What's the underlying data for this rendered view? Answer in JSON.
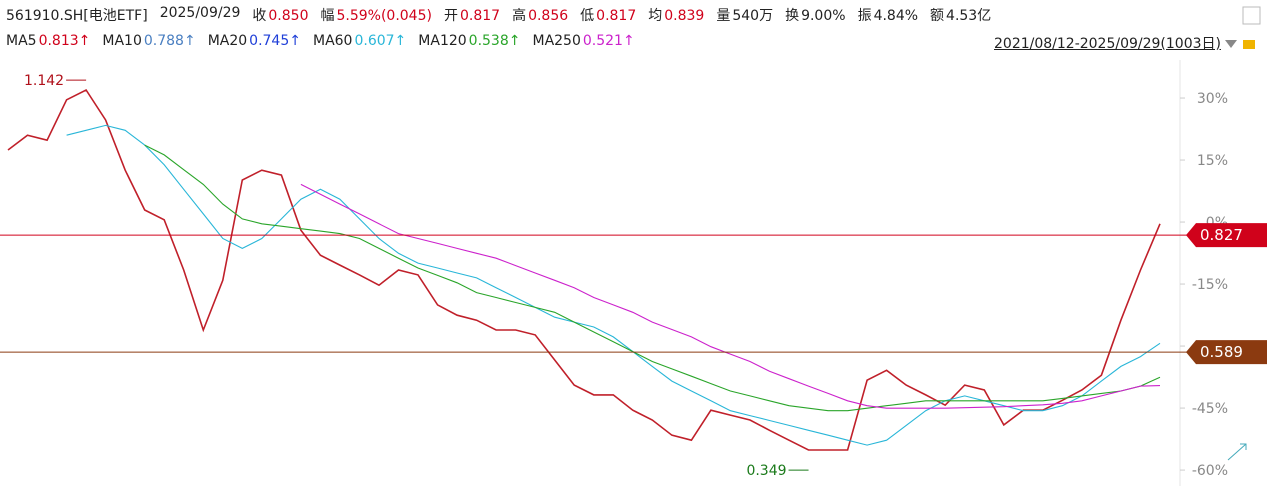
{
  "header": {
    "code": "561910.SH[电池ETF]",
    "date": "2025/09/29",
    "fields": [
      {
        "label": "收",
        "value": "0.850",
        "color": "#d0021b"
      },
      {
        "label": "幅",
        "value": "5.59%(0.045)",
        "color": "#d0021b"
      },
      {
        "label": "开",
        "value": "0.817",
        "color": "#d0021b"
      },
      {
        "label": "高",
        "value": "0.856",
        "color": "#d0021b"
      },
      {
        "label": "低",
        "value": "0.817",
        "color": "#d0021b"
      },
      {
        "label": "均",
        "value": "0.839",
        "color": "#d0021b"
      },
      {
        "label": "量",
        "value": "540万",
        "color": "#222222"
      },
      {
        "label": "换",
        "value": "9.00%",
        "color": "#222222"
      },
      {
        "label": "振",
        "value": "4.84%",
        "color": "#222222"
      },
      {
        "label": "额",
        "value": "4.53亿",
        "color": "#222222"
      }
    ],
    "range": "2021/08/12-2025/09/29(1003日)"
  },
  "chart_data": {
    "type": "line",
    "ma_legend": [
      {
        "name": "MA5",
        "value": "0.813↑",
        "color": "#d0021b"
      },
      {
        "name": "MA10",
        "value": "0.788↑",
        "color": "#4a7fc1"
      },
      {
        "name": "MA20",
        "value": "0.745↑",
        "color": "#1f3fd8"
      },
      {
        "name": "MA60",
        "value": "0.607↑",
        "color": "#29b6d8"
      },
      {
        "name": "MA120",
        "value": "0.538↑",
        "color": "#2aa52a"
      },
      {
        "name": "MA250",
        "value": "0.521↑",
        "color": "#cc22cc"
      }
    ],
    "categories": [
      null,
      null,
      null,
      null,
      null,
      null,
      null,
      null,
      null,
      null,
      null,
      null,
      null,
      null,
      null,
      null,
      null,
      null,
      null,
      null,
      null,
      null,
      null,
      null,
      null,
      null,
      null,
      null,
      null,
      null,
      null,
      null,
      null,
      null,
      null,
      null,
      null,
      null,
      null,
      null,
      null,
      null,
      null,
      null,
      null,
      null,
      null,
      null,
      null,
      null,
      null,
      null,
      null,
      null,
      null,
      null,
      null,
      null,
      null,
      null
    ],
    "series": [
      {
        "color": "#c0202a",
        "values": [
          1.0,
          1.03,
          1.02,
          1.102,
          1.122,
          1.061,
          0.959,
          0.878,
          0.858,
          0.756,
          0.634,
          0.735,
          0.939,
          0.959,
          0.949,
          0.837,
          0.786,
          0.766,
          0.746,
          0.725,
          0.756,
          0.746,
          0.685,
          0.664,
          0.654,
          0.634,
          0.634,
          0.624,
          0.573,
          0.522,
          0.502,
          0.502,
          0.471,
          0.451,
          0.42,
          0.41,
          0.471,
          0.461,
          0.451,
          0.43,
          0.41,
          0.39,
          0.39,
          0.39,
          0.532,
          0.552,
          0.522,
          0.502,
          0.481,
          0.522,
          0.512,
          0.441,
          0.471,
          0.471,
          0.491,
          0.512,
          0.542,
          0.654,
          0.756,
          0.85
        ]
      },
      {
        "color": "#29b6d8",
        "values": [
          null,
          null,
          null,
          1.03,
          1.04,
          1.05,
          1.04,
          1.01,
          0.97,
          0.92,
          0.87,
          0.82,
          0.8,
          0.82,
          0.86,
          0.9,
          0.92,
          0.9,
          0.86,
          0.82,
          0.79,
          0.77,
          0.76,
          0.75,
          0.74,
          0.72,
          0.7,
          0.68,
          0.66,
          0.65,
          0.64,
          0.62,
          0.59,
          0.56,
          0.53,
          0.51,
          0.49,
          0.47,
          0.46,
          0.45,
          0.44,
          0.43,
          0.42,
          0.41,
          0.4,
          0.41,
          0.44,
          0.47,
          0.49,
          0.5,
          0.49,
          0.48,
          0.47,
          0.47,
          0.48,
          0.5,
          0.53,
          0.56,
          0.58,
          0.607
        ]
      },
      {
        "color": "#2aa52a",
        "values": [
          null,
          null,
          null,
          null,
          null,
          null,
          null,
          1.01,
          0.99,
          0.96,
          0.93,
          0.89,
          0.86,
          0.85,
          0.845,
          0.84,
          0.835,
          0.83,
          0.82,
          0.8,
          0.78,
          0.76,
          0.745,
          0.73,
          0.71,
          0.7,
          0.69,
          0.68,
          0.67,
          0.65,
          0.63,
          0.61,
          0.59,
          0.57,
          0.555,
          0.54,
          0.525,
          0.51,
          0.5,
          0.49,
          0.48,
          0.475,
          0.47,
          0.47,
          0.475,
          0.48,
          0.485,
          0.49,
          0.49,
          0.49,
          0.49,
          0.49,
          0.49,
          0.49,
          0.495,
          0.5,
          0.505,
          0.51,
          0.52,
          0.538
        ]
      },
      {
        "color": "#cc22cc",
        "values": [
          null,
          null,
          null,
          null,
          null,
          null,
          null,
          null,
          null,
          null,
          null,
          null,
          null,
          null,
          null,
          0.93,
          0.91,
          0.89,
          0.87,
          0.85,
          0.83,
          0.82,
          0.81,
          0.8,
          0.79,
          0.78,
          0.765,
          0.75,
          0.735,
          0.72,
          0.7,
          0.685,
          0.67,
          0.65,
          0.635,
          0.62,
          0.6,
          0.585,
          0.57,
          0.55,
          0.535,
          0.52,
          0.505,
          0.49,
          0.48,
          0.475,
          0.475,
          0.475,
          0.475,
          0.476,
          0.477,
          0.478,
          0.48,
          0.482,
          0.485,
          0.49,
          0.5,
          0.51,
          0.52,
          0.521
        ]
      }
    ],
    "ylim": [
      0.329,
      1.183
    ],
    "y2lim": [
      -62.4,
      39.2
    ],
    "y2ticks": [
      {
        "value": 30,
        "label": "30%"
      },
      {
        "value": 15,
        "label": "15%"
      },
      {
        "value": 0,
        "label": "0%"
      },
      {
        "value": -15,
        "label": "-15%"
      },
      {
        "value": -30,
        "label": "-30%"
      },
      {
        "value": -45,
        "label": "-45%"
      },
      {
        "value": -60,
        "label": "-60%"
      }
    ],
    "price_lines": [
      {
        "value": 0.827,
        "label": "0.827",
        "color": "#d0021b"
      },
      {
        "value": 0.589,
        "label": "0.589",
        "color": "#8b3a10"
      }
    ],
    "extremes": [
      {
        "value": 1.142,
        "label": "1.142",
        "color": "#b0101a"
      },
      {
        "value": 0.349,
        "label": "0.349",
        "color": "#1a7a1a"
      }
    ]
  }
}
